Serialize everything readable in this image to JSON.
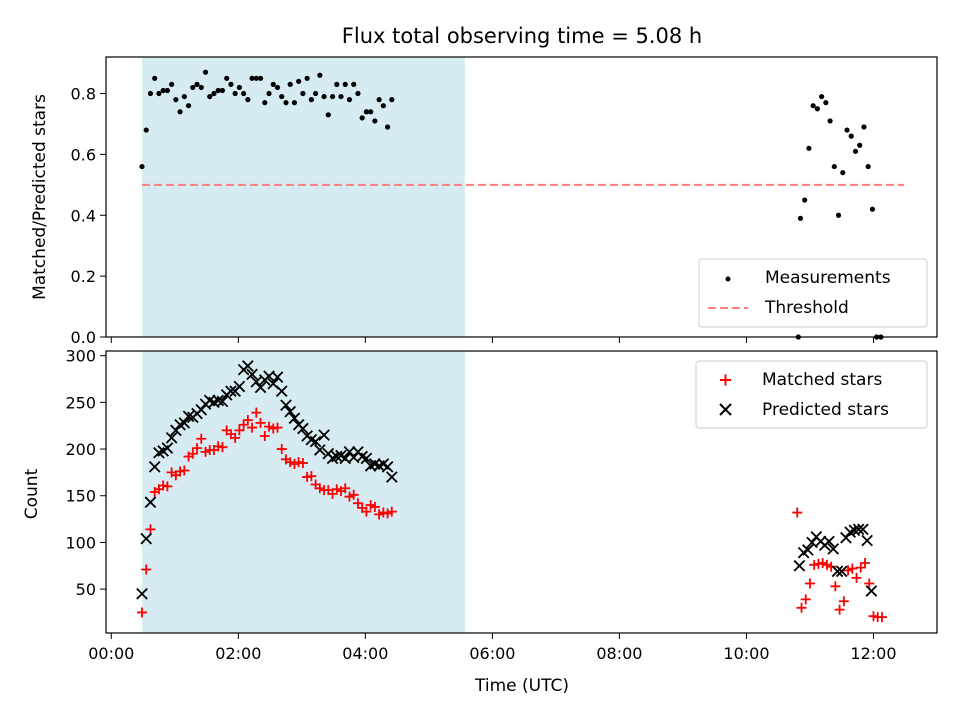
{
  "title": "Flux total observing time = 5.08 h",
  "colors": {
    "span": "#add8e6",
    "measurements": "#000000",
    "threshold": "#ff7f7f",
    "matched": "#ff0000",
    "predicted": "#000000"
  },
  "chart_data": [
    {
      "type": "scatter",
      "ylabel": "Matched/Predicted stars",
      "xlabel": "",
      "ylim": [
        0.0,
        0.92
      ],
      "yticks": [
        "0.0",
        "0.2",
        "0.4",
        "0.6",
        "0.8"
      ],
      "shaded_span": [
        "00:29",
        "05:34"
      ],
      "legend": {
        "placement": "lower-right",
        "entries": [
          "Measurements",
          "Threshold"
        ]
      },
      "threshold": {
        "y": 0.5,
        "x": [
          "00:29",
          "12:29"
        ]
      },
      "series": [
        {
          "name": "Measurements",
          "marker": "dot",
          "points": [
            [
              "00:29",
              0.56
            ],
            [
              "00:33",
              0.68
            ],
            [
              "00:37",
              0.8
            ],
            [
              "00:41",
              0.85
            ],
            [
              "00:45",
              0.8
            ],
            [
              "00:49",
              0.81
            ],
            [
              "00:53",
              0.81
            ],
            [
              "00:57",
              0.83
            ],
            [
              "01:01",
              0.78
            ],
            [
              "01:05",
              0.74
            ],
            [
              "01:09",
              0.79
            ],
            [
              "01:13",
              0.76
            ],
            [
              "01:17",
              0.82
            ],
            [
              "01:21",
              0.83
            ],
            [
              "01:25",
              0.82
            ],
            [
              "01:29",
              0.87
            ],
            [
              "01:33",
              0.79
            ],
            [
              "01:37",
              0.8
            ],
            [
              "01:41",
              0.81
            ],
            [
              "01:45",
              0.81
            ],
            [
              "01:49",
              0.85
            ],
            [
              "01:53",
              0.83
            ],
            [
              "01:57",
              0.8
            ],
            [
              "02:01",
              0.82
            ],
            [
              "02:05",
              0.8
            ],
            [
              "02:09",
              0.78
            ],
            [
              "02:13",
              0.85
            ],
            [
              "02:17",
              0.85
            ],
            [
              "02:21",
              0.85
            ],
            [
              "02:25",
              0.77
            ],
            [
              "02:29",
              0.8
            ],
            [
              "02:33",
              0.83
            ],
            [
              "02:37",
              0.82
            ],
            [
              "02:41",
              0.79
            ],
            [
              "02:45",
              0.77
            ],
            [
              "02:49",
              0.83
            ],
            [
              "02:53",
              0.77
            ],
            [
              "02:57",
              0.84
            ],
            [
              "03:01",
              0.8
            ],
            [
              "03:05",
              0.85
            ],
            [
              "03:09",
              0.78
            ],
            [
              "03:13",
              0.8
            ],
            [
              "03:17",
              0.86
            ],
            [
              "03:21",
              0.79
            ],
            [
              "03:25",
              0.73
            ],
            [
              "03:29",
              0.79
            ],
            [
              "03:33",
              0.83
            ],
            [
              "03:37",
              0.79
            ],
            [
              "03:41",
              0.83
            ],
            [
              "03:45",
              0.78
            ],
            [
              "03:49",
              0.83
            ],
            [
              "03:53",
              0.8
            ],
            [
              "03:57",
              0.72
            ],
            [
              "04:01",
              0.74
            ],
            [
              "04:05",
              0.74
            ],
            [
              "04:09",
              0.71
            ],
            [
              "04:13",
              0.78
            ],
            [
              "04:17",
              0.76
            ],
            [
              "04:21",
              0.69
            ],
            [
              "04:25",
              0.78
            ],
            [
              "10:49",
              0.0
            ],
            [
              "10:51",
              0.39
            ],
            [
              "10:55",
              0.45
            ],
            [
              "10:59",
              0.62
            ],
            [
              "11:03",
              0.76
            ],
            [
              "11:07",
              0.75
            ],
            [
              "11:11",
              0.79
            ],
            [
              "11:15",
              0.77
            ],
            [
              "11:19",
              0.71
            ],
            [
              "11:23",
              0.56
            ],
            [
              "11:27",
              0.4
            ],
            [
              "11:31",
              0.54
            ],
            [
              "11:35",
              0.68
            ],
            [
              "11:39",
              0.66
            ],
            [
              "11:43",
              0.61
            ],
            [
              "11:47",
              0.63
            ],
            [
              "11:51",
              0.69
            ],
            [
              "11:55",
              0.56
            ],
            [
              "11:59",
              0.42
            ],
            [
              "12:03",
              0.0
            ],
            [
              "12:07",
              0.0
            ]
          ]
        }
      ]
    },
    {
      "type": "scatter",
      "ylabel": "Count",
      "xlabel": "Time (UTC)",
      "ylim": [
        3,
        305
      ],
      "yticks": [
        "50",
        "100",
        "150",
        "200",
        "250",
        "300"
      ],
      "xlim": [
        "-00:05",
        "13:00"
      ],
      "xticks": [
        "00:00",
        "02:00",
        "04:00",
        "06:00",
        "08:00",
        "10:00",
        "12:00"
      ],
      "shaded_span": [
        "00:29",
        "05:34"
      ],
      "legend": {
        "placement": "upper-right",
        "entries": [
          "Matched stars",
          "Predicted stars"
        ]
      },
      "series": [
        {
          "name": "Matched stars",
          "marker": "plus",
          "points": [
            [
              "00:29",
              25
            ],
            [
              "00:33",
              71
            ],
            [
              "00:37",
              114
            ],
            [
              "00:41",
              154
            ],
            [
              "00:45",
              157
            ],
            [
              "00:49",
              161
            ],
            [
              "00:53",
              160
            ],
            [
              "00:57",
              175
            ],
            [
              "01:01",
              172
            ],
            [
              "01:05",
              176
            ],
            [
              "01:09",
              177
            ],
            [
              "01:13",
              192
            ],
            [
              "01:17",
              195
            ],
            [
              "01:21",
              201
            ],
            [
              "01:25",
              211
            ],
            [
              "01:29",
              197
            ],
            [
              "01:33",
              199
            ],
            [
              "01:37",
              199
            ],
            [
              "01:41",
              203
            ],
            [
              "01:45",
              202
            ],
            [
              "01:49",
              220
            ],
            [
              "01:53",
              216
            ],
            [
              "01:57",
              212
            ],
            [
              "02:01",
              220
            ],
            [
              "02:05",
              226
            ],
            [
              "02:09",
              231
            ],
            [
              "02:13",
              223
            ],
            [
              "02:17",
              239
            ],
            [
              "02:21",
              228
            ],
            [
              "02:25",
              214
            ],
            [
              "02:29",
              224
            ],
            [
              "02:33",
              222
            ],
            [
              "02:37",
              223
            ],
            [
              "02:41",
              200
            ],
            [
              "02:45",
              189
            ],
            [
              "02:49",
              186
            ],
            [
              "02:53",
              184
            ],
            [
              "02:57",
              186
            ],
            [
              "03:01",
              185
            ],
            [
              "03:05",
              170
            ],
            [
              "03:09",
              171
            ],
            [
              "03:13",
              162
            ],
            [
              "03:17",
              158
            ],
            [
              "03:21",
              156
            ],
            [
              "03:25",
              156
            ],
            [
              "03:29",
              152
            ],
            [
              "03:33",
              157
            ],
            [
              "03:37",
              155
            ],
            [
              "03:41",
              158
            ],
            [
              "03:45",
              149
            ],
            [
              "03:49",
              151
            ],
            [
              "03:53",
              142
            ],
            [
              "03:57",
              137
            ],
            [
              "04:01",
              133
            ],
            [
              "04:05",
              140
            ],
            [
              "04:09",
              138
            ],
            [
              "04:13",
              130
            ],
            [
              "04:17",
              132
            ],
            [
              "04:21",
              131
            ],
            [
              "04:25",
              133
            ],
            [
              "10:48",
              132
            ],
            [
              "10:52",
              30
            ],
            [
              "10:56",
              39
            ],
            [
              "11:00",
              56
            ],
            [
              "11:04",
              76
            ],
            [
              "11:08",
              77
            ],
            [
              "11:12",
              78
            ],
            [
              "11:16",
              76
            ],
            [
              "11:20",
              74
            ],
            [
              "11:24",
              53
            ],
            [
              "11:28",
              28
            ],
            [
              "11:32",
              37
            ],
            [
              "11:36",
              70
            ],
            [
              "11:40",
              72
            ],
            [
              "11:44",
              62
            ],
            [
              "11:48",
              73
            ],
            [
              "11:52",
              78
            ],
            [
              "11:56",
              56
            ],
            [
              "12:00",
              21
            ],
            [
              "12:04",
              20
            ],
            [
              "12:08",
              20
            ]
          ]
        },
        {
          "name": "Predicted stars",
          "marker": "x",
          "points": [
            [
              "00:29",
              45
            ],
            [
              "00:33",
              104
            ],
            [
              "00:37",
              143
            ],
            [
              "00:41",
              181
            ],
            [
              "00:45",
              196
            ],
            [
              "00:49",
              198
            ],
            [
              "00:53",
              201
            ],
            [
              "00:57",
              212
            ],
            [
              "01:01",
              220
            ],
            [
              "01:05",
              226
            ],
            [
              "01:09",
              228
            ],
            [
              "01:13",
              235
            ],
            [
              "01:17",
              234
            ],
            [
              "01:21",
              238
            ],
            [
              "01:25",
              242
            ],
            [
              "01:29",
              248
            ],
            [
              "01:33",
              252
            ],
            [
              "01:37",
              250
            ],
            [
              "01:41",
              252
            ],
            [
              "01:45",
              251
            ],
            [
              "01:49",
              258
            ],
            [
              "01:53",
              262
            ],
            [
              "01:57",
              262
            ],
            [
              "02:01",
              267
            ],
            [
              "02:05",
              285
            ],
            [
              "02:09",
              289
            ],
            [
              "02:13",
              280
            ],
            [
              "02:17",
              272
            ],
            [
              "02:21",
              266
            ],
            [
              "02:25",
              274
            ],
            [
              "02:29",
              278
            ],
            [
              "02:33",
              270
            ],
            [
              "02:37",
              277
            ],
            [
              "02:41",
              262
            ],
            [
              "02:45",
              247
            ],
            [
              "02:49",
              240
            ],
            [
              "02:53",
              233
            ],
            [
              "02:57",
              226
            ],
            [
              "03:01",
              222
            ],
            [
              "03:05",
              214
            ],
            [
              "03:09",
              210
            ],
            [
              "03:13",
              208
            ],
            [
              "03:17",
              199
            ],
            [
              "03:21",
              215
            ],
            [
              "03:25",
              195
            ],
            [
              "03:29",
              190
            ],
            [
              "03:33",
              192
            ],
            [
              "03:37",
              193
            ],
            [
              "03:41",
              190
            ],
            [
              "03:45",
              197
            ],
            [
              "03:49",
              191
            ],
            [
              "03:53",
              197
            ],
            [
              "03:57",
              192
            ],
            [
              "04:01",
              190
            ],
            [
              "04:05",
              182
            ],
            [
              "04:09",
              184
            ],
            [
              "04:13",
              182
            ],
            [
              "04:17",
              184
            ],
            [
              "04:21",
              181
            ],
            [
              "04:25",
              170
            ],
            [
              "10:50",
              75
            ],
            [
              "10:54",
              89
            ],
            [
              "10:58",
              92
            ],
            [
              "11:02",
              100
            ],
            [
              "11:06",
              106
            ],
            [
              "11:10",
              101
            ],
            [
              "11:14",
              97
            ],
            [
              "11:18",
              101
            ],
            [
              "11:22",
              93
            ],
            [
              "11:26",
              69
            ],
            [
              "11:30",
              69
            ],
            [
              "11:34",
              105
            ],
            [
              "11:38",
              111
            ],
            [
              "11:42",
              113
            ],
            [
              "11:46",
              114
            ],
            [
              "11:50",
              114
            ],
            [
              "11:54",
              102
            ],
            [
              "11:58",
              48
            ]
          ]
        }
      ]
    }
  ]
}
